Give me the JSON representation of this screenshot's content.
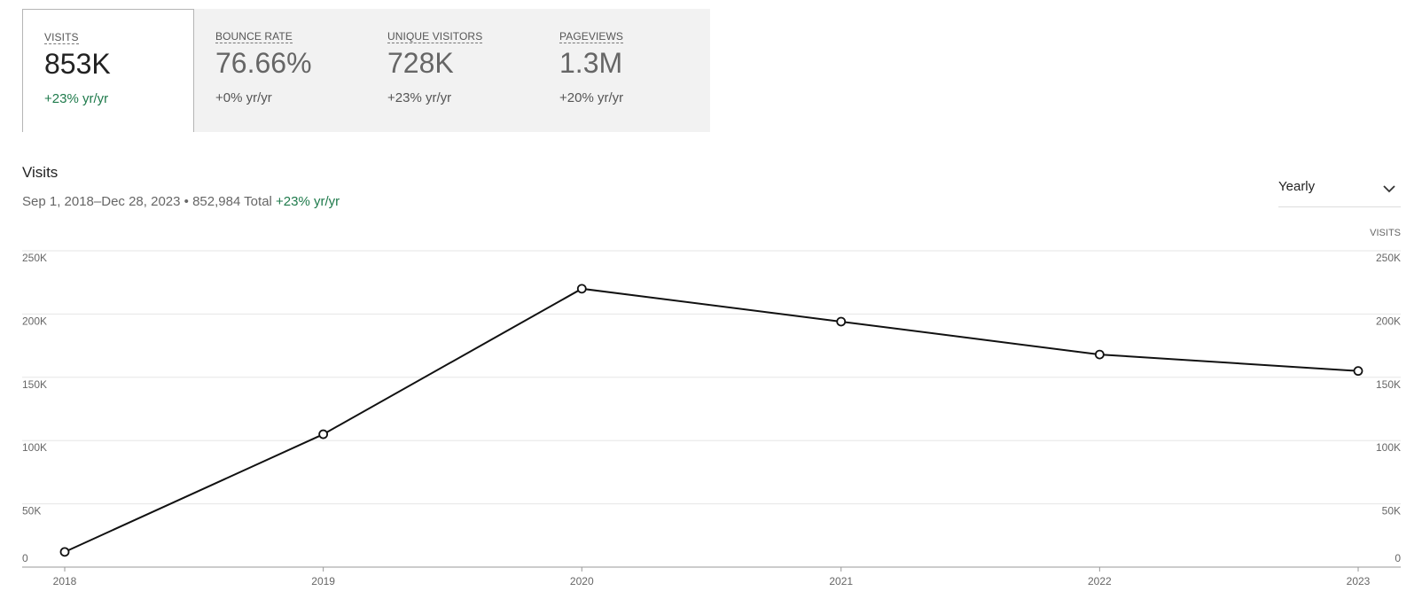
{
  "stats": [
    {
      "label": "VISITS",
      "value": "853K",
      "change": "+23% yr/yr",
      "positive": true,
      "active": true
    },
    {
      "label": "BOUNCE RATE",
      "value": "76.66%",
      "change": "+0% yr/yr",
      "positive": false,
      "active": false
    },
    {
      "label": "UNIQUE VISITORS",
      "value": "728K",
      "change": "+23% yr/yr",
      "positive": false,
      "active": false
    },
    {
      "label": "PAGEVIEWS",
      "value": "1.3M",
      "change": "+20% yr/yr",
      "positive": false,
      "active": false
    }
  ],
  "section": {
    "title": "Visits",
    "date_range": "Sep 1, 2018–Dec 28, 2023 • 852,984 Total",
    "change": "+23% yr/yr"
  },
  "dropdown": {
    "label": "Yearly",
    "icon": "chevron-down-icon"
  },
  "colors": {
    "accent_green": "#1e7a4b",
    "line": "#111111",
    "grid": "#e6e6e6"
  },
  "chart_data": {
    "type": "line",
    "right_axis_label": "VISITS",
    "x": [
      "2018",
      "2019",
      "2020",
      "2021",
      "2022",
      "2023"
    ],
    "x_dates": [
      "2018-01-01",
      "2019-01-01",
      "2020-01-01",
      "2021-01-01",
      "2022-01-01",
      "2023-01-01"
    ],
    "series": [
      {
        "values": [
          12000,
          105000,
          220000,
          194000,
          168000,
          155000
        ]
      }
    ],
    "ylim": [
      0,
      250000
    ],
    "yticks": [
      0,
      50000,
      100000,
      150000,
      200000,
      250000
    ],
    "ytick_labels": [
      "0",
      "50K",
      "100K",
      "150K",
      "200K",
      "250K"
    ],
    "grid": true,
    "legend": "none"
  }
}
